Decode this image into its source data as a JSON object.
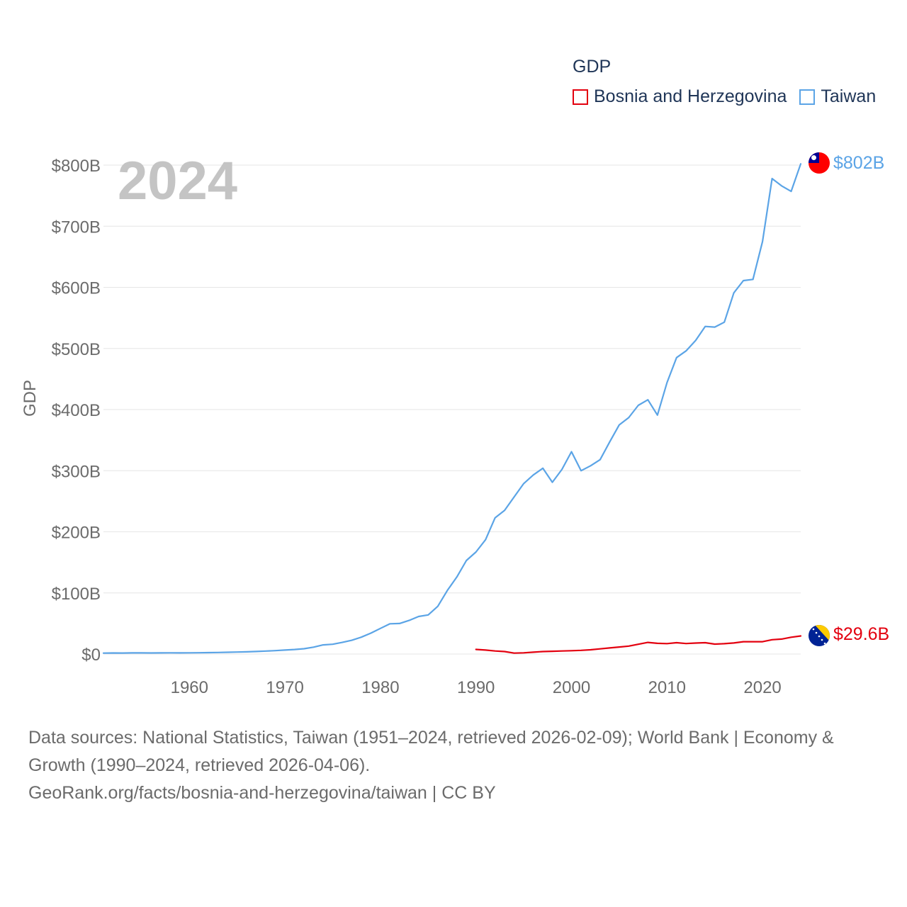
{
  "legend": {
    "title": "GDP",
    "items": [
      {
        "label": "Bosnia and Herzegovina",
        "color": "#e3000f"
      },
      {
        "label": "Taiwan",
        "color": "#5ba4e6"
      }
    ]
  },
  "year_label": "2024",
  "footer": {
    "sources": "Data sources: National Statistics, Taiwan (1951–2024, retrieved 2026-02-09); World Bank | Economy & Growth (1990–2024, retrieved 2026-04-06).",
    "url": "GeoRank.org/facts/bosnia-and-herzegovina/taiwan | CC BY"
  },
  "chart_data": {
    "type": "line",
    "title": "GDP",
    "xlabel": "",
    "ylabel": "GDP",
    "xlim": [
      1951,
      2024
    ],
    "ylim": [
      0,
      800
    ],
    "y_unit": "billion USD",
    "x_ticks": [
      1960,
      1970,
      1980,
      1990,
      2000,
      2010,
      2020
    ],
    "x_tick_labels": [
      "1960",
      "1970",
      "1980",
      "1990",
      "2000",
      "2010",
      "2020"
    ],
    "y_ticks": [
      0,
      100,
      200,
      300,
      400,
      500,
      600,
      700,
      800
    ],
    "y_tick_labels": [
      "$0",
      "$100B",
      "$200B",
      "$300B",
      "$400B",
      "$500B",
      "$600B",
      "$700B",
      "$800B"
    ],
    "grid": true,
    "series": [
      {
        "name": "Taiwan",
        "color": "#5ba4e6",
        "end_label": "$802B",
        "flag": "taiwan-flag-icon",
        "x": [
          1951,
          1952,
          1953,
          1954,
          1955,
          1956,
          1957,
          1958,
          1959,
          1960,
          1961,
          1962,
          1963,
          1964,
          1965,
          1966,
          1967,
          1968,
          1969,
          1970,
          1971,
          1972,
          1973,
          1974,
          1975,
          1976,
          1977,
          1978,
          1979,
          1980,
          1981,
          1982,
          1983,
          1984,
          1985,
          1986,
          1987,
          1988,
          1989,
          1990,
          1991,
          1992,
          1993,
          1994,
          1995,
          1996,
          1997,
          1998,
          1999,
          2000,
          2001,
          2002,
          2003,
          2004,
          2005,
          2006,
          2007,
          2008,
          2009,
          2010,
          2011,
          2012,
          2013,
          2014,
          2015,
          2016,
          2017,
          2018,
          2019,
          2020,
          2021,
          2022,
          2023,
          2024
        ],
        "values": [
          1.5,
          1.7,
          1.6,
          1.8,
          1.9,
          1.7,
          1.9,
          2.0,
          1.8,
          2.0,
          2.1,
          2.3,
          2.6,
          2.9,
          3.2,
          3.6,
          4.2,
          4.9,
          5.6,
          6.5,
          7.4,
          8.7,
          11.2,
          15.0,
          16.0,
          19.0,
          22.5,
          27.6,
          34.2,
          42.0,
          49.5,
          50.0,
          55.0,
          61.5,
          64.0,
          78.0,
          104.0,
          126.0,
          153.0,
          167.0,
          187.0,
          223.0,
          235.0,
          257.0,
          279.0,
          293.0,
          304.0,
          281.0,
          302.0,
          331.0,
          300.0,
          308.0,
          318.0,
          347.0,
          375.0,
          387.0,
          407.0,
          416.0,
          391.0,
          444.0,
          485.0,
          496.0,
          513.0,
          536.0,
          535.0,
          543.0,
          591.0,
          611.0,
          613.0,
          675.0,
          778.0,
          766.0,
          757.0,
          802.0
        ]
      },
      {
        "name": "Bosnia and Herzegovina",
        "color": "#e3000f",
        "end_label": "$29.6B",
        "flag": "bosnia-flag-icon",
        "x": [
          1990,
          1991,
          1992,
          1993,
          1994,
          1995,
          1996,
          1997,
          1998,
          1999,
          2000,
          2001,
          2002,
          2003,
          2004,
          2005,
          2006,
          2007,
          2008,
          2009,
          2010,
          2011,
          2012,
          2013,
          2014,
          2015,
          2016,
          2017,
          2018,
          2019,
          2020,
          2021,
          2022,
          2023,
          2024
        ],
        "values": [
          7.5,
          6.5,
          5.0,
          4.0,
          1.5,
          2.0,
          3.0,
          4.0,
          4.5,
          5.0,
          5.5,
          6.0,
          7.0,
          8.5,
          10.0,
          11.5,
          13.0,
          16.0,
          19.0,
          17.5,
          17.0,
          18.6,
          17.2,
          18.0,
          18.5,
          16.2,
          16.9,
          18.1,
          20.2,
          20.2,
          20.2,
          23.4,
          24.5,
          27.5,
          29.6
        ]
      }
    ]
  }
}
